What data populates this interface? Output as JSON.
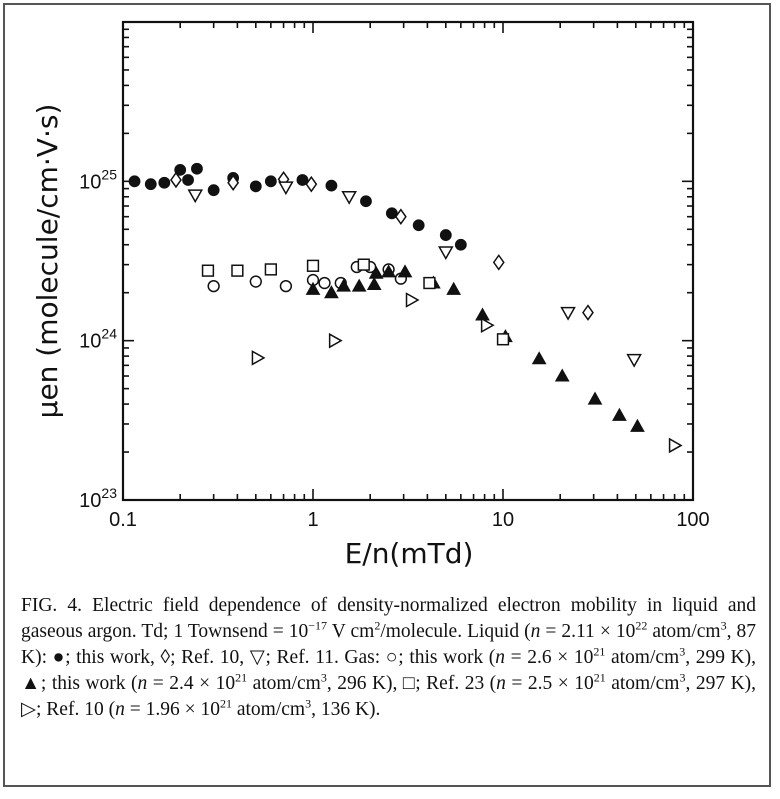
{
  "chart_data": {
    "type": "scatter",
    "x_scale": "log",
    "y_scale": "log",
    "xlim": [
      0.1,
      100
    ],
    "ylim": [
      1e+23,
      1e+26
    ],
    "xlabel": "E/n(mTd)",
    "ylabel": "μen (molecule/cm·V·s)",
    "x_ticks": [
      {
        "value": 0.1,
        "label": "0.1"
      },
      {
        "value": 1,
        "label": "1"
      },
      {
        "value": 10,
        "label": "10"
      },
      {
        "value": 100,
        "label": "100"
      }
    ],
    "y_ticks": [
      {
        "value": 1e+23,
        "base": "10",
        "exp": "23"
      },
      {
        "value": 1e+24,
        "base": "10",
        "exp": "24"
      },
      {
        "value": 1e+25,
        "base": "10",
        "exp": "25"
      }
    ],
    "grid": false,
    "series": [
      {
        "marker": "filled-circle",
        "points": [
          [
            0.115,
            1e+25
          ],
          [
            0.14,
            9.6e+24
          ],
          [
            0.165,
            9.8e+24
          ],
          [
            0.2,
            1.18e+25
          ],
          [
            0.22,
            1.02e+25
          ],
          [
            0.245,
            1.2e+25
          ],
          [
            0.3,
            8.8e+24
          ],
          [
            0.38,
            1.05e+25
          ],
          [
            0.5,
            9.3e+24
          ],
          [
            0.6,
            1e+25
          ],
          [
            0.88,
            1.02e+25
          ],
          [
            1.25,
            9.4e+24
          ],
          [
            1.9,
            7.5e+24
          ],
          [
            2.6,
            6.3e+24
          ],
          [
            3.6,
            5.3e+24
          ],
          [
            5.0,
            4.6e+24
          ],
          [
            6.0,
            4e+24
          ]
        ]
      },
      {
        "marker": "open-diamond",
        "points": [
          [
            0.19,
            1.02e+25
          ],
          [
            0.38,
            9.8e+24
          ],
          [
            0.7,
            1.03e+25
          ],
          [
            0.98,
            9.6e+24
          ],
          [
            2.9,
            6e+24
          ],
          [
            9.5,
            3.1e+24
          ],
          [
            28.0,
            1.5e+24
          ]
        ]
      },
      {
        "marker": "open-triangle-down",
        "points": [
          [
            0.24,
            8.2e+24
          ],
          [
            0.72,
            9.2e+24
          ],
          [
            1.55,
            8e+24
          ],
          [
            5.0,
            3.6e+24
          ],
          [
            22.0,
            1.5e+24
          ],
          [
            49.0,
            7.6e+23
          ]
        ]
      },
      {
        "marker": "open-circle",
        "points": [
          [
            0.3,
            2.2e+24
          ],
          [
            0.5,
            2.35e+24
          ],
          [
            0.72,
            2.2e+24
          ],
          [
            1.0,
            2.4e+24
          ],
          [
            1.15,
            2.3e+24
          ],
          [
            1.4,
            2.3e+24
          ],
          [
            1.7,
            2.9e+24
          ],
          [
            2.0,
            2.9e+24
          ],
          [
            2.5,
            2.8e+24
          ],
          [
            2.9,
            2.45e+24
          ]
        ]
      },
      {
        "marker": "filled-triangle-up",
        "points": [
          [
            1.0,
            2.1e+24
          ],
          [
            1.25,
            2e+24
          ],
          [
            1.45,
            2.2e+24
          ],
          [
            1.75,
            2.2e+24
          ],
          [
            2.1,
            2.25e+24
          ],
          [
            2.15,
            2.65e+24
          ],
          [
            2.5,
            2.7e+24
          ],
          [
            3.05,
            2.7e+24
          ],
          [
            4.3,
            2.3e+24
          ],
          [
            5.5,
            2.1e+24
          ],
          [
            7.8,
            1.45e+24
          ],
          [
            10.3,
            1.06e+24
          ],
          [
            15.5,
            7.7e+23
          ],
          [
            20.5,
            6e+23
          ],
          [
            30.5,
            4.3e+23
          ],
          [
            41.0,
            3.4e+23
          ],
          [
            51.0,
            2.9e+23
          ]
        ]
      },
      {
        "marker": "open-square",
        "points": [
          [
            0.28,
            2.75e+24
          ],
          [
            0.4,
            2.75e+24
          ],
          [
            0.6,
            2.8e+24
          ],
          [
            1.0,
            2.95e+24
          ],
          [
            1.85,
            3e+24
          ],
          [
            4.1,
            2.3e+24
          ],
          [
            10.0,
            1.02e+24
          ]
        ]
      },
      {
        "marker": "open-triangle-right",
        "points": [
          [
            0.51,
            7.8e+23
          ],
          [
            1.3,
            1e+24
          ],
          [
            3.3,
            1.8e+24
          ],
          [
            8.2,
            1.25e+24
          ],
          [
            80.0,
            2.2e+23
          ]
        ]
      }
    ]
  },
  "caption": {
    "p1": "FIG. 4. Electric field dependence of density-normalized electron mobility in liquid and gaseous argon. Td; 1 Townsend = 10",
    "p1_exp": "−17",
    "p2": " V cm",
    "p2_exp": "2",
    "p3": "/molecule. Liquid (",
    "n1": "n",
    "p4": " = 2.11 × 10",
    "p4_exp": "22",
    "p5": " atom/cm",
    "p5_exp": "3",
    "p6": ", 87 K): ●; this work, ◊; Ref. 10, ▽; Ref. 11. Gas: ○; this work (",
    "n2": "n",
    "p7": " = 2.6 × 10",
    "p7_exp": "21",
    "p8": " atom/cm",
    "p8_exp": "3",
    "p9": ", 299 K), ▲; this work (",
    "n3": "n",
    "p10": " = 2.4 × 10",
    "p10_exp": "21",
    "p11": " atom/cm",
    "p11_exp": "3",
    "p12": ", 296 K), □; Ref. 23 (",
    "n4": "n",
    "p13": " = 2.5 × 10",
    "p13_exp": "21",
    "p14": " atom/cm",
    "p14_exp": "3",
    "p15": ", 297 K), ▷; Ref. 10 (",
    "n5": "n",
    "p16": " = 1.96 × 10",
    "p16_exp": "21",
    "p17": " atom/cm",
    "p17_exp": "3",
    "p18": ", 136 K)."
  }
}
